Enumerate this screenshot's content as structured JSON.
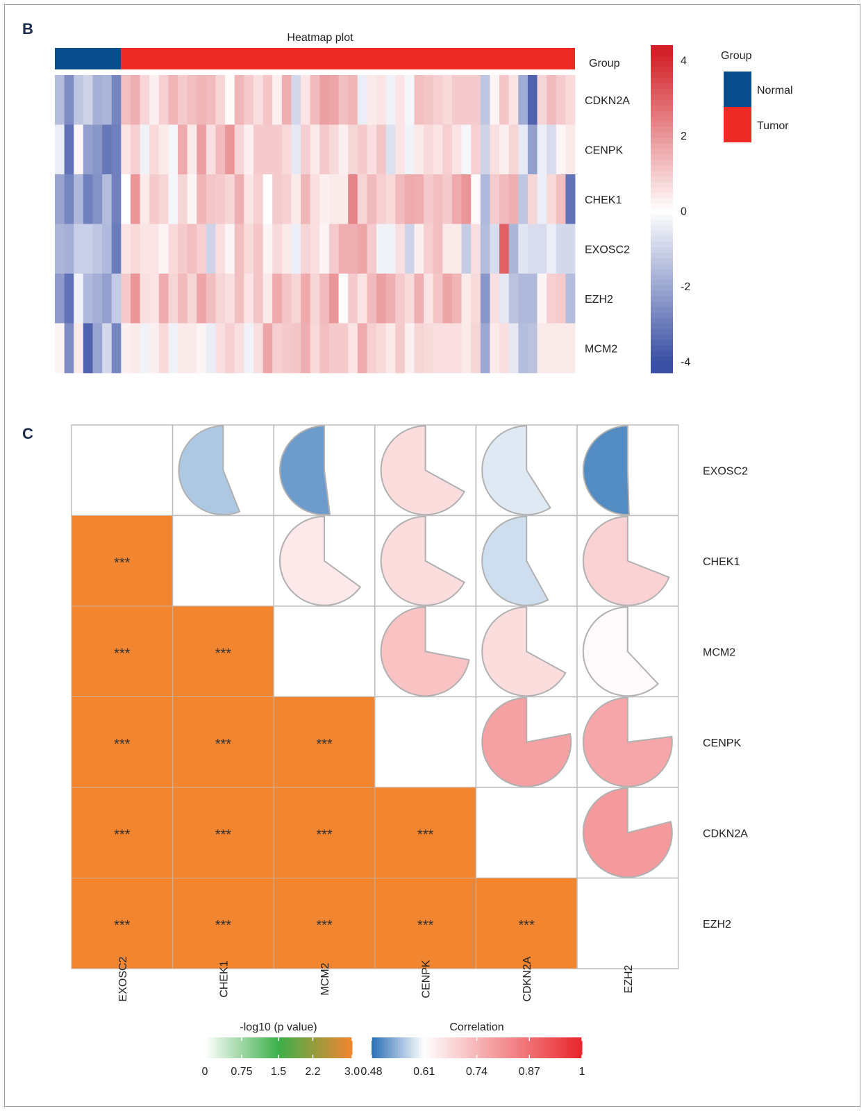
{
  "panels": {
    "b": "B",
    "c": "C"
  },
  "chart_data": [
    {
      "type": "heatmap",
      "title": "Heatmap plot",
      "rows": [
        "CDKN2A",
        "CENPK",
        "CHEK1",
        "EXOSC2",
        "EZH2",
        "MCM2"
      ],
      "annotation": {
        "label": "Group",
        "legend_title": "Group",
        "categories": [
          "Normal",
          "Tumor"
        ],
        "colors": {
          "Normal": "#0a4d8c",
          "Tumor": "#ee2a24"
        },
        "columns_per_group": [
          7,
          48
        ]
      },
      "color_scale": {
        "min": -4,
        "max": 4.4,
        "ticks": [
          -4,
          -2,
          0,
          2,
          4
        ],
        "tick_labels": [
          "-4",
          "-2",
          "0",
          "2",
          "4"
        ],
        "colors": {
          "low": "#3a50a4",
          "mid": "#ffffff",
          "high": "#d22027"
        }
      },
      "values": [
        [
          -1.5,
          -2.6,
          -1.3,
          -1.0,
          -1.8,
          -1.7,
          -2.8,
          1.2,
          1.5,
          0.8,
          0.3,
          0.9,
          1.4,
          1.0,
          1.2,
          1.4,
          1.3,
          0.8,
          0.1,
          1.4,
          1.0,
          0.6,
          1.1,
          0.3,
          1.5,
          -0.9,
          0.5,
          1.3,
          1.8,
          1.7,
          1.2,
          1.4,
          -0.4,
          0.4,
          0.5,
          -0.3,
          0.5,
          -0.2,
          1.2,
          1.1,
          0.9,
          0.7,
          1.0,
          1.0,
          1.0,
          -1.3,
          0.2,
          1.1,
          0.5,
          -1.9,
          -3.6,
          0.8,
          1.3,
          1.0,
          0.7
        ],
        [
          -0.4,
          -3.2,
          0.2,
          -2.2,
          -2.4,
          -3.1,
          -2.9,
          0.5,
          0.9,
          -0.3,
          0.7,
          0.4,
          -0.2,
          1.6,
          0.4,
          1.8,
          0.6,
          1.3,
          2.0,
          0.8,
          0.3,
          1.0,
          1.0,
          1.0,
          0.7,
          -0.5,
          0.9,
          0.4,
          1.0,
          0.7,
          0.3,
          0.8,
          1.0,
          0.6,
          1.1,
          -0.7,
          0.5,
          -0.3,
          0.4,
          0.7,
          0.5,
          0.9,
          0.5,
          -0.2,
          0.9,
          -1.0,
          0.6,
          0.3,
          0.8,
          -0.5,
          -2.2,
          -0.4,
          -0.8,
          0.2,
          0.4
        ],
        [
          -2.1,
          -2.8,
          -1.6,
          -2.9,
          -2.5,
          -1.5,
          -2.9,
          0.0,
          2.0,
          0.4,
          1.0,
          0.8,
          -0.2,
          0.8,
          0.2,
          1.4,
          1.1,
          1.0,
          0.8,
          1.5,
          0.5,
          0.9,
          0.0,
          1.0,
          0.9,
          0.4,
          1.4,
          0.6,
          0.3,
          0.4,
          0.4,
          2.3,
          0.8,
          1.3,
          0.9,
          0.7,
          1.3,
          1.6,
          1.5,
          1.0,
          1.2,
          1.0,
          1.6,
          2.0,
          0.1,
          -1.6,
          1.0,
          1.3,
          1.5,
          -1.3,
          0.8,
          -0.4,
          0.7,
          1.2,
          -3.2
        ],
        [
          -1.7,
          -1.8,
          -1.1,
          -1.1,
          -1.3,
          -1.6,
          -3.0,
          0.5,
          0.7,
          0.5,
          0.5,
          0.2,
          0.7,
          1.0,
          1.2,
          0.9,
          -1.0,
          0.6,
          0.2,
          1.2,
          0.7,
          1.1,
          0.2,
          0.7,
          0.4,
          -0.4,
          0.8,
          0.6,
          0.2,
          1.0,
          1.5,
          1.5,
          1.7,
          1.0,
          -0.3,
          -0.3,
          0.6,
          -1.0,
          0.3,
          0.9,
          1.2,
          0.4,
          0.4,
          -1.2,
          0.6,
          -1.5,
          -0.8,
          3.0,
          -1.7,
          -0.6,
          -0.8,
          -0.8,
          -0.4,
          -0.9,
          -0.9
        ],
        [
          -2.3,
          -3.2,
          -0.3,
          -1.6,
          -1.8,
          -2.2,
          -1.2,
          1.0,
          2.0,
          0.6,
          0.5,
          1.6,
          0.8,
          1.3,
          0.8,
          1.7,
          1.2,
          0.8,
          0.6,
          1.2,
          0.5,
          1.1,
          0.4,
          1.6,
          1.1,
          0.8,
          1.6,
          0.8,
          1.3,
          2.0,
          0.1,
          1.0,
          0.5,
          1.3,
          1.8,
          1.5,
          1.0,
          0.7,
          1.5,
          0.5,
          1.1,
          1.7,
          1.4,
          0.4,
          0.7,
          -2.4,
          0.6,
          -0.5,
          -1.4,
          -1.6,
          -1.6,
          0.2,
          0.9,
          1.0,
          -1.5
        ],
        [
          0.2,
          -2.6,
          0.4,
          -3.6,
          -2.1,
          -0.9,
          -2.8,
          0.3,
          0.4,
          -0.3,
          0.3,
          0.7,
          -0.3,
          0.4,
          0.4,
          0.2,
          -0.4,
          0.6,
          0.9,
          0.6,
          -0.3,
          0.6,
          1.7,
          0.9,
          1.0,
          1.1,
          1.5,
          0.7,
          1.2,
          1.0,
          1.0,
          0.5,
          1.6,
          0.9,
          0.7,
          0.4,
          1.0,
          0.3,
          0.8,
          0.7,
          0.6,
          0.6,
          0.6,
          0.4,
          0.8,
          -2.0,
          0.4,
          0.6,
          -0.5,
          -1.5,
          -1.4,
          0.4,
          0.4,
          0.4,
          0.4
        ]
      ]
    },
    {
      "type": "heatmap",
      "subtype": "correlation-matrix",
      "variables": [
        "EXOSC2",
        "CHEK1",
        "MCM2",
        "CENPK",
        "CDKN2A",
        "EZH2"
      ],
      "upper_triangle": {
        "metric": "Correlation",
        "encoding": "pie",
        "pairs": [
          {
            "row": "EXOSC2",
            "col": "CHEK1",
            "r": 0.56
          },
          {
            "row": "EXOSC2",
            "col": "MCM2",
            "r": 0.52
          },
          {
            "row": "EXOSC2",
            "col": "CENPK",
            "r": 0.67
          },
          {
            "row": "EXOSC2",
            "col": "CDKN2A",
            "r": 0.59
          },
          {
            "row": "EXOSC2",
            "col": "EZH2",
            "r": 0.505
          },
          {
            "row": "CHEK1",
            "col": "MCM2",
            "r": 0.65
          },
          {
            "row": "CHEK1",
            "col": "CDKN2A",
            "r": 0.58
          },
          {
            "row": "CHEK1",
            "col": "CENPK",
            "r": 0.67
          },
          {
            "row": "CHEK1",
            "col": "EZH2",
            "r": 0.69
          },
          {
            "row": "MCM2",
            "col": "CENPK",
            "r": 0.72
          },
          {
            "row": "MCM2",
            "col": "CDKN2A",
            "r": 0.67
          },
          {
            "row": "MCM2",
            "col": "EZH2",
            "r": 0.62
          },
          {
            "row": "CENPK",
            "col": "CDKN2A",
            "r": 0.78
          },
          {
            "row": "CENPK",
            "col": "EZH2",
            "r": 0.77
          },
          {
            "row": "CDKN2A",
            "col": "EZH2",
            "r": 0.79
          }
        ]
      },
      "lower_triangle": {
        "metric": "-log10 (p value)",
        "encoding": "color",
        "value": 3.0,
        "label": "***",
        "color": "#f28530"
      },
      "legends": [
        {
          "title": "-log10 (p value)",
          "ticks": [
            0,
            0.75,
            1.5,
            2.2,
            3.0
          ],
          "tick_labels": [
            "0",
            "0.75",
            "1.5",
            "2.2",
            "3.0"
          ],
          "colors": [
            "#ffffff",
            "#3db04b",
            "#f28530"
          ]
        },
        {
          "title": "Correlation",
          "ticks": [
            0.48,
            0.61,
            0.74,
            0.87,
            1
          ],
          "tick_labels": [
            "0.48",
            "0.61",
            "0.74",
            "0.87",
            "1"
          ],
          "colors": {
            "low": "#2a6fb5",
            "mid": "#ffffff",
            "high": "#e8252b"
          }
        }
      ]
    }
  ]
}
